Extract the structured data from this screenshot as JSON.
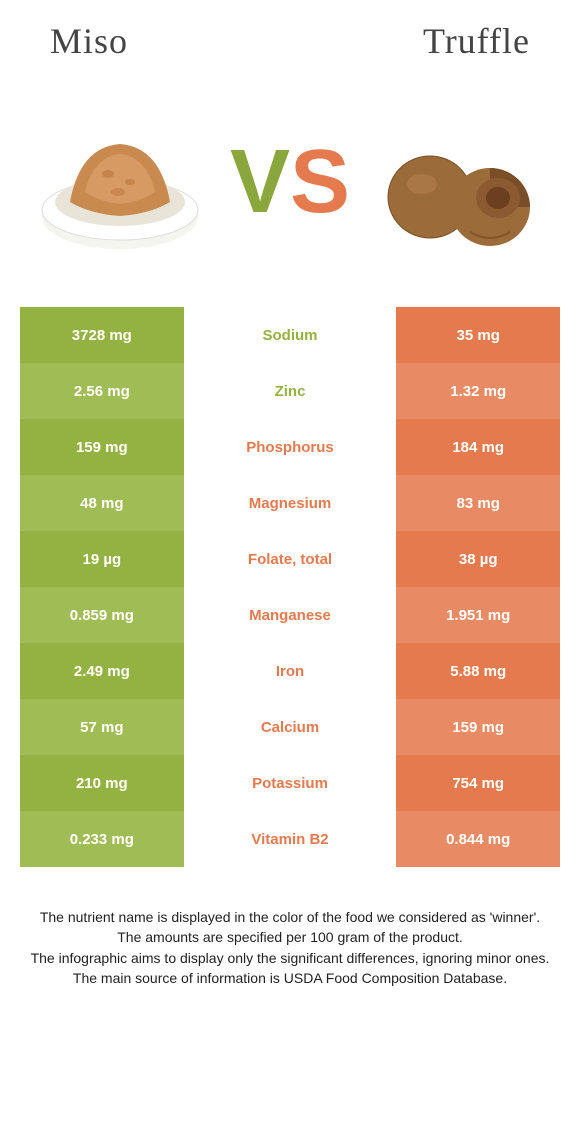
{
  "header": {
    "left_title": "Miso",
    "right_title": "Truffle",
    "vs_v": "V",
    "vs_s": "S"
  },
  "colors": {
    "left_primary": "#94b241",
    "left_alt": "#a0bc55",
    "right_primary": "#e57a4f",
    "right_alt": "#e88a63",
    "mid_bg": "#ffffff",
    "left_text": "#ffffff",
    "right_text": "#ffffff",
    "left_label": "#94b241",
    "right_label": "#e57a4f",
    "body_text": "#222222"
  },
  "table": {
    "rows": [
      {
        "left": "3728 mg",
        "name": "Sodium",
        "right": "35 mg",
        "winner": "left"
      },
      {
        "left": "2.56 mg",
        "name": "Zinc",
        "right": "1.32 mg",
        "winner": "left"
      },
      {
        "left": "159 mg",
        "name": "Phosphorus",
        "right": "184 mg",
        "winner": "right"
      },
      {
        "left": "48 mg",
        "name": "Magnesium",
        "right": "83 mg",
        "winner": "right"
      },
      {
        "left": "19 µg",
        "name": "Folate, total",
        "right": "38 µg",
        "winner": "right"
      },
      {
        "left": "0.859 mg",
        "name": "Manganese",
        "right": "1.951 mg",
        "winner": "right"
      },
      {
        "left": "2.49 mg",
        "name": "Iron",
        "right": "5.88 mg",
        "winner": "right"
      },
      {
        "left": "57 mg",
        "name": "Calcium",
        "right": "159 mg",
        "winner": "right"
      },
      {
        "left": "210 mg",
        "name": "Potassium",
        "right": "754 mg",
        "winner": "right"
      },
      {
        "left": "0.233 mg",
        "name": "Vitamin B2",
        "right": "0.844 mg",
        "winner": "right"
      }
    ]
  },
  "footnote": {
    "l1": "The nutrient name is displayed in the color of the food we considered as 'winner'.",
    "l2": "The amounts are specified per 100 gram of the product.",
    "l3": "The infographic aims to display only the significant differences, ignoring minor ones.",
    "l4": "The main source of information is USDA Food Composition Database."
  }
}
